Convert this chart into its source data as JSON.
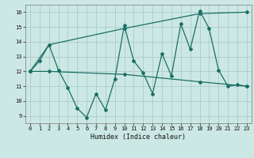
{
  "title": "",
  "xlabel": "Humidex (Indice chaleur)",
  "bg_color": "#cce8e4",
  "line_color": "#1a6e64",
  "grid_color": "#aaccc8",
  "xlim": [
    -0.5,
    23.5
  ],
  "ylim": [
    8.5,
    16.5
  ],
  "yticks": [
    9,
    10,
    11,
    12,
    13,
    14,
    15,
    16
  ],
  "xticks": [
    0,
    1,
    2,
    3,
    4,
    5,
    6,
    7,
    8,
    9,
    10,
    11,
    12,
    13,
    14,
    15,
    16,
    17,
    18,
    19,
    20,
    21,
    22,
    23
  ],
  "line1_x": [
    0,
    1,
    2,
    3,
    4,
    5,
    6,
    7,
    8,
    9,
    10,
    11,
    12,
    13,
    14,
    15,
    16,
    17,
    18,
    19,
    20,
    21,
    22,
    23
  ],
  "line1_y": [
    12.0,
    12.7,
    13.8,
    12.1,
    10.9,
    9.5,
    8.9,
    10.5,
    9.4,
    11.5,
    15.1,
    12.7,
    11.9,
    10.5,
    13.2,
    11.7,
    15.2,
    13.5,
    16.1,
    14.9,
    12.1,
    11.0,
    11.1,
    11.0
  ],
  "line2_x": [
    0,
    2,
    10,
    18,
    23
  ],
  "line2_y": [
    12.0,
    13.8,
    14.9,
    15.9,
    16.0
  ],
  "line3_x": [
    0,
    2,
    10,
    18,
    23
  ],
  "line3_y": [
    12.0,
    12.0,
    11.8,
    11.3,
    11.0
  ]
}
